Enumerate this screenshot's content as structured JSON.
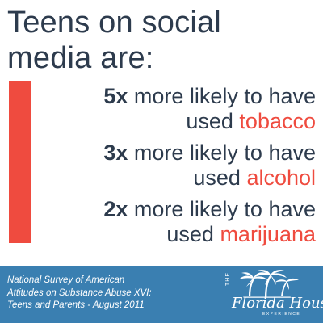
{
  "title": {
    "line1": "Teens on social",
    "line2": "media are:"
  },
  "stats": [
    {
      "multiplier": "5x",
      "text_line1": " more likely to have",
      "text_line2_prefix": "used ",
      "substance": "tobacco"
    },
    {
      "multiplier": "3x",
      "text_line1": " more likely to have",
      "text_line2_prefix": "used ",
      "substance": "alcohol"
    },
    {
      "multiplier": "2x",
      "text_line1": " more likely to have",
      "text_line2_prefix": "used ",
      "substance": "marijuana"
    }
  ],
  "source": {
    "line1": "National Survey of American",
    "line2": "Attitudes on Substance Abuse XVI:",
    "line3": "Teens and Parents - August 2011"
  },
  "logo": {
    "the": "THE",
    "wordmark": "Florida House",
    "subtitle": "EXPERIENCE",
    "icon": "palm-trees-icon"
  },
  "colors": {
    "dark_text": "#2d3b4d",
    "accent_red": "#ef4b3f",
    "footer_blue": "#3a7fb1",
    "white": "#ffffff"
  }
}
